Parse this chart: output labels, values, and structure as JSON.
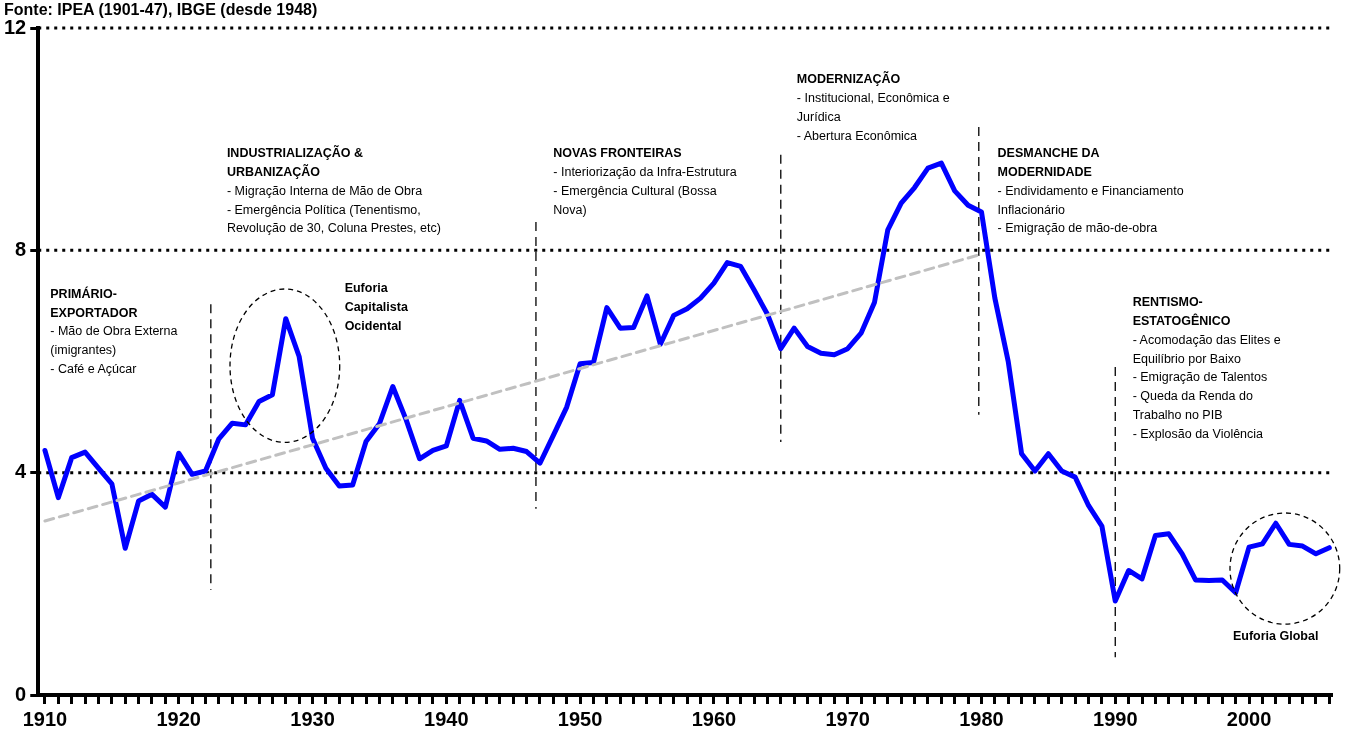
{
  "chart_data": {
    "type": "line",
    "x": [
      1910,
      1911,
      1912,
      1913,
      1914,
      1915,
      1916,
      1917,
      1918,
      1919,
      1920,
      1921,
      1922,
      1923,
      1924,
      1925,
      1926,
      1927,
      1928,
      1929,
      1930,
      1931,
      1932,
      1933,
      1934,
      1935,
      1936,
      1937,
      1938,
      1939,
      1940,
      1941,
      1942,
      1943,
      1944,
      1945,
      1946,
      1947,
      1948,
      1949,
      1950,
      1951,
      1952,
      1953,
      1954,
      1955,
      1956,
      1957,
      1958,
      1959,
      1960,
      1961,
      1962,
      1963,
      1964,
      1965,
      1966,
      1967,
      1968,
      1969,
      1970,
      1971,
      1972,
      1973,
      1974,
      1975,
      1976,
      1977,
      1978,
      1979,
      1980,
      1981,
      1982,
      1983,
      1984,
      1985,
      1986,
      1987,
      1988,
      1989,
      1990,
      1991,
      1992,
      1993,
      1994,
      1995,
      1996,
      1997,
      1998,
      1999,
      2000,
      2001,
      2002,
      2003,
      2004,
      2005,
      2006
    ],
    "series": [
      {
        "color": "#0000ff",
        "values": [
          4.4,
          3.55,
          4.27,
          4.37,
          4.08,
          3.8,
          2.64,
          3.49,
          3.61,
          3.38,
          4.35,
          3.97,
          4.03,
          4.61,
          4.89,
          4.86,
          5.28,
          5.4,
          6.77,
          6.09,
          4.62,
          4.08,
          3.76,
          3.78,
          4.56,
          4.88,
          5.55,
          4.95,
          4.25,
          4.4,
          4.48,
          5.3,
          4.62,
          4.57,
          4.42,
          4.44,
          4.38,
          4.17,
          4.67,
          5.18,
          5.96,
          5.98,
          6.97,
          6.6,
          6.61,
          7.18,
          6.31,
          6.83,
          6.95,
          7.14,
          7.41,
          7.78,
          7.71,
          7.29,
          6.85,
          6.23,
          6.6,
          6.27,
          6.15,
          6.12,
          6.23,
          6.51,
          7.06,
          8.37,
          8.85,
          9.13,
          9.48,
          9.57,
          9.07,
          8.81,
          8.69,
          7.14,
          6.0,
          4.34,
          4.03,
          4.34,
          4.03,
          3.92,
          3.41,
          3.04,
          1.69,
          2.24,
          2.09,
          2.87,
          2.9,
          2.54,
          2.07,
          2.06,
          2.07,
          1.84,
          2.66,
          2.72,
          3.09,
          2.71,
          2.68,
          2.54,
          2.65
        ]
      },
      {
        "type": "line",
        "color": "#c0c0c0",
        "line_style": "dashed",
        "x": [
          1910,
          1980
        ],
        "values": [
          3.13,
          7.93
        ]
      }
    ],
    "xlim": [
      1909.5,
      2006.2
    ],
    "xticks": [
      1910,
      {
        "value": 1911,
        "label": null
      },
      {
        "value": 1912,
        "label": null
      },
      {
        "value": 1913,
        "label": null
      },
      {
        "value": 1914,
        "label": null
      },
      {
        "value": 1915,
        "label": null
      },
      {
        "value": 1916,
        "label": null
      },
      {
        "value": 1917,
        "label": null
      },
      {
        "value": 1918,
        "label": null
      },
      {
        "value": 1919,
        "label": null
      },
      1920,
      {
        "value": 1921,
        "label": null
      },
      {
        "value": 1922,
        "label": null
      },
      {
        "value": 1923,
        "label": null
      },
      {
        "value": 1924,
        "label": null
      },
      {
        "value": 1925,
        "label": null
      },
      {
        "value": 1926,
        "label": null
      },
      {
        "value": 1927,
        "label": null
      },
      {
        "value": 1928,
        "label": null
      },
      {
        "value": 1929,
        "label": null
      },
      1930,
      {
        "value": 1931,
        "label": null
      },
      {
        "value": 1932,
        "label": null
      },
      {
        "value": 1933,
        "label": null
      },
      {
        "value": 1934,
        "label": null
      },
      {
        "value": 1935,
        "label": null
      },
      {
        "value": 1936,
        "label": null
      },
      {
        "value": 1937,
        "label": null
      },
      {
        "value": 1938,
        "label": null
      },
      {
        "value": 1939,
        "label": null
      },
      1940,
      {
        "value": 1941,
        "label": null
      },
      {
        "value": 1942,
        "label": null
      },
      {
        "value": 1943,
        "label": null
      },
      {
        "value": 1944,
        "label": null
      },
      {
        "value": 1945,
        "label": null
      },
      {
        "value": 1946,
        "label": null
      },
      {
        "value": 1947,
        "label": null
      },
      {
        "value": 1948,
        "label": null
      },
      {
        "value": 1949,
        "label": null
      },
      1950,
      {
        "value": 1951,
        "label": null
      },
      {
        "value": 1952,
        "label": null
      },
      {
        "value": 1953,
        "label": null
      },
      {
        "value": 1954,
        "label": null
      },
      {
        "value": 1955,
        "label": null
      },
      {
        "value": 1956,
        "label": null
      },
      {
        "value": 1957,
        "label": null
      },
      {
        "value": 1958,
        "label": null
      },
      {
        "value": 1959,
        "label": null
      },
      1960,
      {
        "value": 1961,
        "label": null
      },
      {
        "value": 1962,
        "label": null
      },
      {
        "value": 1963,
        "label": null
      },
      {
        "value": 1964,
        "label": null
      },
      {
        "value": 1965,
        "label": null
      },
      {
        "value": 1966,
        "label": null
      },
      {
        "value": 1967,
        "label": null
      },
      {
        "value": 1968,
        "label": null
      },
      {
        "value": 1969,
        "label": null
      },
      1970,
      {
        "value": 1971,
        "label": null
      },
      {
        "value": 1972,
        "label": null
      },
      {
        "value": 1973,
        "label": null
      },
      {
        "value": 1974,
        "label": null
      },
      {
        "value": 1975,
        "label": null
      },
      {
        "value": 1976,
        "label": null
      },
      {
        "value": 1977,
        "label": null
      },
      {
        "value": 1978,
        "label": null
      },
      {
        "value": 1979,
        "label": null
      },
      1980,
      {
        "value": 1981,
        "label": null
      },
      {
        "value": 1982,
        "label": null
      },
      {
        "value": 1983,
        "label": null
      },
      {
        "value": 1984,
        "label": null
      },
      {
        "value": 1985,
        "label": null
      },
      {
        "value": 1986,
        "label": null
      },
      {
        "value": 1987,
        "label": null
      },
      {
        "value": 1988,
        "label": null
      },
      {
        "value": 1989,
        "label": null
      },
      1990,
      {
        "value": 1991,
        "label": null
      },
      {
        "value": 1992,
        "label": null
      },
      {
        "value": 1993,
        "label": null
      },
      {
        "value": 1994,
        "label": null
      },
      {
        "value": 1995,
        "label": null
      },
      {
        "value": 1996,
        "label": null
      },
      {
        "value": 1997,
        "label": null
      },
      {
        "value": 1998,
        "label": null
      },
      {
        "value": 1999,
        "label": null
      },
      2000,
      {
        "value": 2001,
        "label": null
      },
      {
        "value": 2002,
        "label": null
      },
      {
        "value": 2003,
        "label": null
      },
      {
        "value": 2004,
        "label": null
      },
      {
        "value": 2005,
        "label": null
      },
      {
        "value": 2006,
        "label": null
      }
    ],
    "ylim": [
      0,
      12
    ],
    "yticks": [
      0,
      4,
      8,
      12
    ],
    "grid": "y",
    "legend": false,
    "marker": "none",
    "line_style": "solid",
    "ref_lines": [
      {
        "axis": "x",
        "value": 1922.4
      },
      {
        "axis": "x",
        "value": 1946.7
      },
      {
        "axis": "x",
        "value": 1965
      },
      {
        "axis": "x",
        "value": 1979.8
      },
      {
        "axis": "x",
        "value": 1990
      }
    ],
    "annotations": [
      "Fonte: IPEA (1901-47), IBGE (desde 1948)",
      "PRIMÁRIO-\nEXPORTADOR\n- Mão de Obra Externa\n(imigrantes)\n- Café e Açúcar",
      "INDUSTRIALIZAÇÃO &\nURBANIZAÇÃO\n- Migração Interna de Mão de Obra\n- Emergência Política (Tenentismo,\nRevolução de 30, Coluna Prestes, etc)",
      "Euforia\nCapitalista\nOcidental",
      "NOVAS FRONTEIRAS\n- Interiorização da Infra-Estrutura\n- Emergência Cultural (Bossa\nNova)",
      "MODERNIZAÇÃO\n- Institucional, Econômica e\nJurídica\n- Abertura Econômica",
      "DESMANCHE DA\nMODERNIDADE\n- Endividamento e Financiamento\nInflacionário\n- Emigração de mão-de-obra",
      "RENTISMO-\nESTATOGÊNICO\n- Acomodação das Elites e\nEquilíbrio por Baixo\n- Emigração de Talentos\n- Queda da Renda do\nTrabalho no PIB\n- Explosão da Violência",
      "Euforia Global"
    ]
  }
}
